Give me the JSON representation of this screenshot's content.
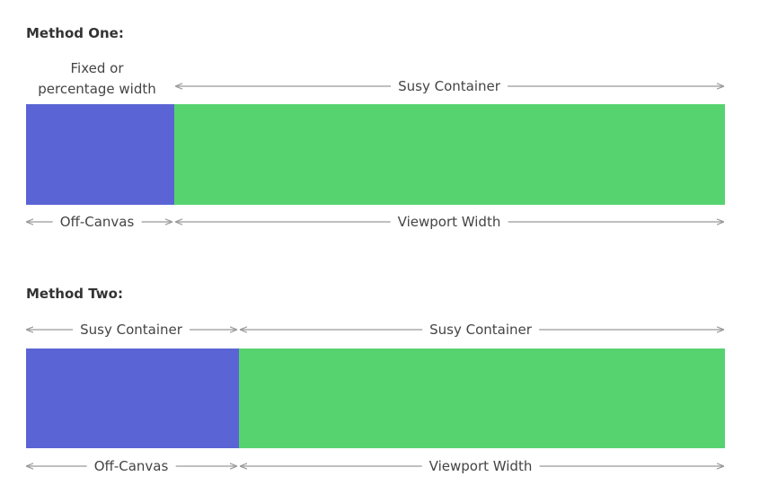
{
  "colors": {
    "off_canvas": "#5a64d4",
    "container": "#56d36f",
    "arrow": "#999999"
  },
  "method_one": {
    "heading": "Method One:",
    "top_left_label_line1": "Fixed or",
    "top_left_label_line2": "percentage width",
    "top_right_label": "Susy Container",
    "bottom_left_label": "Off-Canvas",
    "bottom_right_label": "Viewport Width"
  },
  "method_two": {
    "heading": "Method Two:",
    "top_left_label": "Susy Container",
    "top_right_label": "Susy Container",
    "bottom_left_label": "Off-Canvas",
    "bottom_right_label": "Viewport Width"
  }
}
